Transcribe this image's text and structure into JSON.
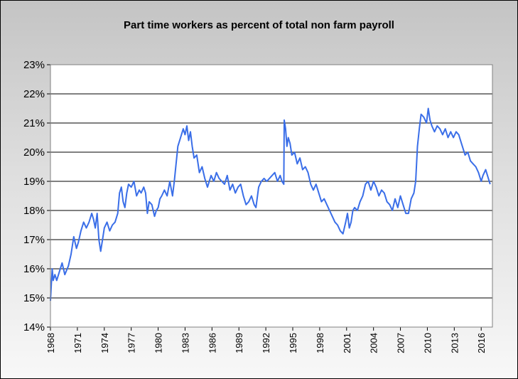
{
  "chart_data": {
    "type": "line",
    "title": "Part time workers as percent of total non farm payroll",
    "xlabel": "",
    "ylabel": "",
    "x_range": [
      1968,
      2017.25
    ],
    "ylim": [
      14,
      23
    ],
    "y_ticks": [
      14,
      15,
      16,
      17,
      18,
      19,
      20,
      21,
      22,
      23
    ],
    "y_tick_labels": [
      "14%",
      "15%",
      "16%",
      "17%",
      "18%",
      "19%",
      "20%",
      "21%",
      "22%",
      "23%"
    ],
    "x_ticks": [
      1968,
      1971,
      1974,
      1977,
      1980,
      1983,
      1986,
      1989,
      1992,
      1995,
      1998,
      2001,
      2004,
      2007,
      2010,
      2013,
      2016
    ],
    "x_tick_labels": [
      "1968",
      "1971",
      "1974",
      "1977",
      "1980",
      "1983",
      "1986",
      "1989",
      "1992",
      "1995",
      "1998",
      "2001",
      "2004",
      "2007",
      "2010",
      "2013",
      "2016"
    ],
    "grid": "horizontal",
    "legend": "none",
    "line_color": "#3a6ee8",
    "series": [
      {
        "x": [
          1968.0,
          1968.1,
          1968.2,
          1968.3,
          1968.5,
          1968.7,
          1969.0,
          1969.3,
          1969.6,
          1970.0,
          1970.3,
          1970.6,
          1970.9,
          1971.1,
          1971.4,
          1971.7,
          1972.0,
          1972.3,
          1972.6,
          1972.8,
          1973.0,
          1973.2,
          1973.4,
          1973.6,
          1973.8,
          1974.0,
          1974.3,
          1974.6,
          1974.9,
          1975.2,
          1975.5,
          1975.7,
          1975.9,
          1976.1,
          1976.3,
          1976.5,
          1976.7,
          1977.0,
          1977.3,
          1977.6,
          1977.9,
          1978.1,
          1978.4,
          1978.6,
          1978.8,
          1979.0,
          1979.3,
          1979.6,
          1979.8,
          1980.0,
          1980.2,
          1980.4,
          1980.7,
          1981.0,
          1981.3,
          1981.6,
          1981.8,
          1982.0,
          1982.2,
          1982.5,
          1982.8,
          1983.0,
          1983.2,
          1983.4,
          1983.6,
          1983.8,
          1984.0,
          1984.3,
          1984.6,
          1984.9,
          1985.2,
          1985.5,
          1985.7,
          1985.9,
          1986.2,
          1986.5,
          1986.8,
          1987.1,
          1987.4,
          1987.7,
          1988.0,
          1988.3,
          1988.6,
          1988.9,
          1989.2,
          1989.5,
          1989.8,
          1990.1,
          1990.4,
          1990.7,
          1990.9,
          1991.2,
          1991.5,
          1991.8,
          1992.1,
          1992.4,
          1992.7,
          1993.0,
          1993.3,
          1993.6,
          1993.8,
          1994.0,
          1994.05,
          1994.2,
          1994.35,
          1994.5,
          1994.7,
          1994.9,
          1995.2,
          1995.5,
          1995.8,
          1996.1,
          1996.4,
          1996.7,
          1997.0,
          1997.3,
          1997.6,
          1997.9,
          1998.2,
          1998.5,
          1998.8,
          1999.1,
          1999.4,
          1999.7,
          2000.0,
          2000.3,
          2000.6,
          2000.9,
          2001.1,
          2001.3,
          2001.5,
          2001.7,
          2001.9,
          2002.2,
          2002.5,
          2002.8,
          2003.1,
          2003.4,
          2003.7,
          2004.0,
          2004.3,
          2004.6,
          2004.9,
          2005.2,
          2005.5,
          2005.8,
          2006.1,
          2006.4,
          2006.7,
          2007.0,
          2007.3,
          2007.6,
          2007.9,
          2008.2,
          2008.5,
          2008.7,
          2008.9,
          2009.1,
          2009.3,
          2009.6,
          2009.9,
          2010.1,
          2010.3,
          2010.5,
          2010.8,
          2011.1,
          2011.4,
          2011.7,
          2012.0,
          2012.3,
          2012.6,
          2012.9,
          2013.2,
          2013.5,
          2013.8,
          2014.0,
          2014.2,
          2014.5,
          2014.8,
          2015.1,
          2015.4,
          2015.7,
          2016.0,
          2016.2,
          2016.5,
          2016.8,
          2017.0
        ],
        "values": [
          14.9,
          15.5,
          16.0,
          15.6,
          15.8,
          15.6,
          15.9,
          16.2,
          15.8,
          16.1,
          16.5,
          17.1,
          16.7,
          16.9,
          17.3,
          17.6,
          17.4,
          17.6,
          17.9,
          17.7,
          17.4,
          17.9,
          17.0,
          16.6,
          17.0,
          17.4,
          17.6,
          17.3,
          17.5,
          17.6,
          17.9,
          18.6,
          18.8,
          18.3,
          18.1,
          18.6,
          18.9,
          18.8,
          19.0,
          18.5,
          18.7,
          18.6,
          18.8,
          18.6,
          17.9,
          18.3,
          18.2,
          17.8,
          18.0,
          18.1,
          18.4,
          18.5,
          18.7,
          18.5,
          19.0,
          18.5,
          19.0,
          19.6,
          20.2,
          20.5,
          20.8,
          20.6,
          20.9,
          20.4,
          20.7,
          20.2,
          19.8,
          19.9,
          19.3,
          19.5,
          19.1,
          18.8,
          19.0,
          19.2,
          19.0,
          19.3,
          19.1,
          19.0,
          18.9,
          19.2,
          18.7,
          18.9,
          18.6,
          18.8,
          18.9,
          18.5,
          18.2,
          18.3,
          18.5,
          18.2,
          18.1,
          18.8,
          19.0,
          19.1,
          19.0,
          19.1,
          19.2,
          19.3,
          19.0,
          19.2,
          19.0,
          18.9,
          21.1,
          20.8,
          20.2,
          20.5,
          20.3,
          19.9,
          20.0,
          19.6,
          19.8,
          19.4,
          19.5,
          19.3,
          18.9,
          18.7,
          18.9,
          18.6,
          18.3,
          18.4,
          18.2,
          18.0,
          17.8,
          17.6,
          17.5,
          17.3,
          17.2,
          17.6,
          17.9,
          17.4,
          17.6,
          18.0,
          18.1,
          18.0,
          18.3,
          18.5,
          18.9,
          19.0,
          18.7,
          19.0,
          18.8,
          18.5,
          18.7,
          18.6,
          18.3,
          18.2,
          18.0,
          18.4,
          18.1,
          18.5,
          18.2,
          17.9,
          17.9,
          18.4,
          18.6,
          19.0,
          20.2,
          20.8,
          21.3,
          21.2,
          21.0,
          21.5,
          21.1,
          20.9,
          20.7,
          20.9,
          20.8,
          20.6,
          20.8,
          20.5,
          20.7,
          20.5,
          20.7,
          20.6,
          20.3,
          20.1,
          19.9,
          20.0,
          19.7,
          19.6,
          19.5,
          19.3,
          19.0,
          19.2,
          19.4,
          19.1,
          18.9
        ]
      }
    ]
  }
}
